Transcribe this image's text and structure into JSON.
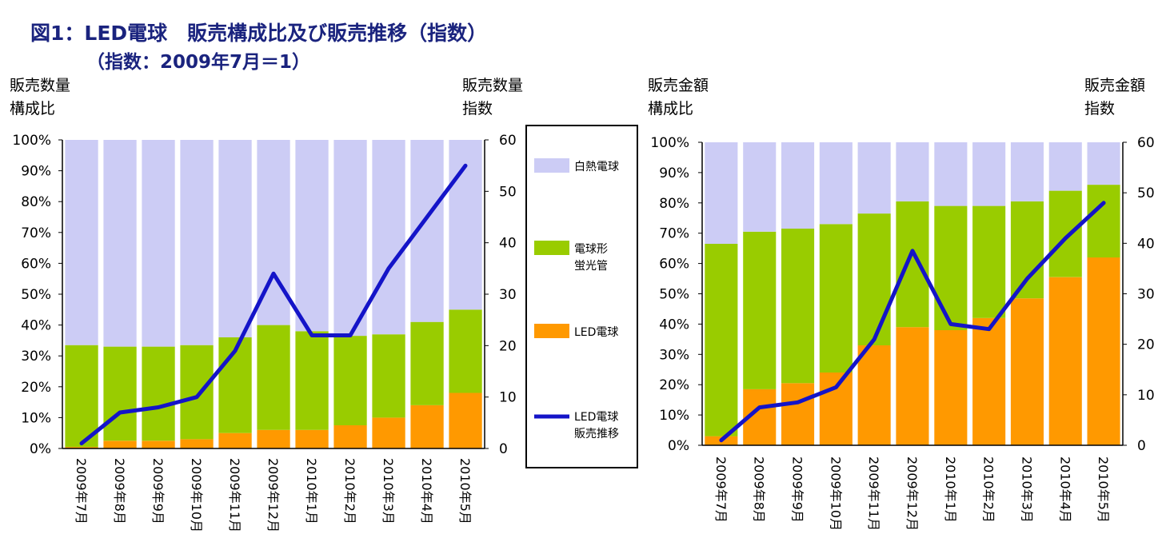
{
  "title": "図1：LED電球　販売構成比及び販売推移（指数）",
  "subtitle": "（指数：2009年7月＝1）",
  "colors": {
    "incandescent": "#ccccf5",
    "fluorescent": "#99cc00",
    "led": "#ff9900",
    "line": "#1414c8"
  },
  "legend": {
    "incandescent": "白熱電球",
    "fluorescent_1": "電球形",
    "fluorescent_2": "蛍光管",
    "led": "LED電球",
    "line_1": "LED電球",
    "line_2": "販売推移"
  },
  "left_axis": {
    "left_cap_1": "販売数量",
    "left_cap_2": "構成比",
    "right_cap_1": "販売数量",
    "right_cap_2": "指数"
  },
  "right_axis": {
    "left_cap_1": "販売金額",
    "left_cap_2": "構成比",
    "right_cap_1": "販売金額",
    "right_cap_2": "指数"
  },
  "chart_data": [
    {
      "type": "bar",
      "stacked": true,
      "categories": [
        "2009年7月",
        "2009年8月",
        "2009年9月",
        "2009年10月",
        "2009年11月",
        "2009年12月",
        "2010年1月",
        "2010年2月",
        "2010年3月",
        "2010年4月",
        "2010年5月"
      ],
      "series": [
        {
          "name": "LED電球",
          "values": [
            0.5,
            2.5,
            2.5,
            3,
            5,
            6,
            6,
            7.5,
            10,
            14,
            18
          ]
        },
        {
          "name": "電球形蛍光管",
          "values": [
            33,
            30.5,
            30.5,
            30.5,
            31,
            34,
            32,
            29,
            27,
            27,
            27
          ]
        },
        {
          "name": "白熱電球",
          "values": [
            66.5,
            67,
            67,
            66.5,
            64,
            60,
            62,
            63.5,
            63,
            59,
            55
          ]
        }
      ],
      "line": {
        "name": "LED電球販売推移",
        "values": [
          1,
          7,
          8,
          10,
          19,
          34,
          22,
          22,
          35,
          45,
          55
        ]
      },
      "ylim": [
        0,
        100
      ],
      "y2lim": [
        0,
        60
      ],
      "yticks": [
        "0%",
        "10%",
        "20%",
        "30%",
        "40%",
        "50%",
        "60%",
        "70%",
        "80%",
        "90%",
        "100%"
      ],
      "y2ticks": [
        "0",
        "10",
        "20",
        "30",
        "40",
        "50",
        "60"
      ]
    },
    {
      "type": "bar",
      "stacked": true,
      "categories": [
        "2009年7月",
        "2009年8月",
        "2009年9月",
        "2009年10月",
        "2009年11月",
        "2009年12月",
        "2010年1月",
        "2010年2月",
        "2010年3月",
        "2010年4月",
        "2010年5月"
      ],
      "series": [
        {
          "name": "LED電球",
          "values": [
            3,
            18.5,
            20.5,
            24,
            33,
            39,
            38,
            42,
            48.5,
            55.5,
            62
          ]
        },
        {
          "name": "電球形蛍光管",
          "values": [
            63.5,
            52,
            51,
            49,
            43.5,
            41.5,
            41,
            37,
            32,
            28.5,
            24
          ]
        },
        {
          "name": "白熱電球",
          "values": [
            33.5,
            29.5,
            28.5,
            27,
            23.5,
            19.5,
            21,
            21,
            19.5,
            16,
            14
          ]
        }
      ],
      "line": {
        "name": "LED電球販売推移",
        "values": [
          1,
          7.5,
          8.5,
          11.5,
          21,
          38.5,
          24,
          23,
          33,
          41,
          48
        ]
      },
      "ylim": [
        0,
        100
      ],
      "y2lim": [
        0,
        60
      ],
      "yticks": [
        "0%",
        "10%",
        "20%",
        "30%",
        "40%",
        "50%",
        "60%",
        "70%",
        "80%",
        "90%",
        "100%"
      ],
      "y2ticks": [
        "0",
        "10",
        "20",
        "30",
        "40",
        "50",
        "60"
      ]
    }
  ]
}
